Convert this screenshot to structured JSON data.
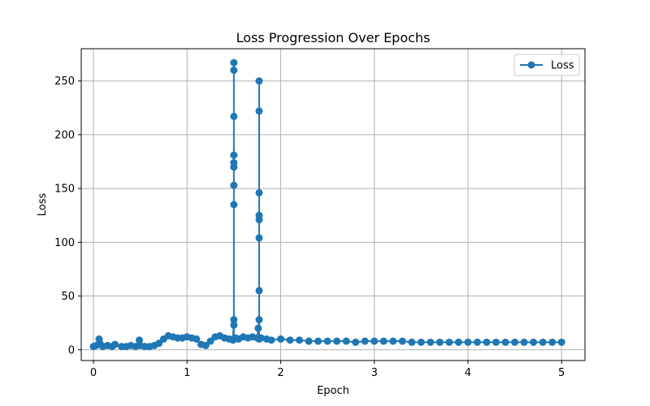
{
  "colors": {
    "series": "#1f77b4",
    "grid": "#b0b0b0",
    "frame": "#000000"
  },
  "chart_data": {
    "type": "line",
    "title": "Loss Progression Over Epochs",
    "xlabel": "Epoch",
    "ylabel": "Loss",
    "xlim": [
      -0.13,
      5.25
    ],
    "ylim": [
      -10,
      280
    ],
    "xticks": [
      0,
      1,
      2,
      3,
      4,
      5
    ],
    "yticks": [
      0,
      50,
      100,
      150,
      200,
      250
    ],
    "grid": true,
    "legend_position": "top-right",
    "series": [
      {
        "name": "Loss",
        "marker": "circle",
        "x": [
          0.0,
          0.03,
          0.06,
          0.07,
          0.1,
          0.15,
          0.2,
          0.23,
          0.3,
          0.35,
          0.4,
          0.45,
          0.49,
          0.5,
          0.55,
          0.6,
          0.65,
          0.7,
          0.75,
          0.8,
          0.85,
          0.9,
          0.95,
          1.0,
          1.05,
          1.1,
          1.15,
          1.2,
          1.25,
          1.3,
          1.35,
          1.4,
          1.45,
          1.49,
          1.5,
          1.5,
          1.5,
          1.5,
          1.5,
          1.5,
          1.5,
          1.5,
          1.5,
          1.5,
          1.5,
          1.52,
          1.55,
          1.6,
          1.65,
          1.7,
          1.75,
          1.76,
          1.77,
          1.77,
          1.77,
          1.77,
          1.77,
          1.77,
          1.77,
          1.77,
          1.77,
          1.79,
          1.85,
          1.9,
          2.0,
          2.1,
          2.2,
          2.3,
          2.4,
          2.5,
          2.6,
          2.7,
          2.8,
          2.9,
          3.0,
          3.1,
          3.2,
          3.3,
          3.4,
          3.5,
          3.6,
          3.7,
          3.8,
          3.9,
          4.0,
          4.1,
          4.2,
          4.3,
          4.4,
          4.5,
          4.6,
          4.7,
          4.8,
          4.9,
          5.0
        ],
        "y": [
          3,
          4,
          10,
          6,
          3,
          4,
          3,
          5,
          3,
          3,
          4,
          3,
          9,
          4,
          3,
          3,
          4,
          6,
          10,
          13,
          12,
          11,
          11,
          12,
          11,
          10,
          5,
          4,
          8,
          12,
          13,
          11,
          10,
          9,
          28,
          135,
          153,
          170,
          174,
          181,
          217,
          260,
          267,
          23,
          10,
          11,
          10,
          12,
          11,
          12,
          11,
          20,
          28,
          55,
          104,
          121,
          125,
          146,
          222,
          250,
          10,
          11,
          10,
          9,
          10,
          9,
          9,
          8,
          8,
          8,
          8,
          8,
          7,
          8,
          8,
          8,
          8,
          8,
          7,
          7,
          7,
          7,
          7,
          7,
          7,
          7,
          7,
          7,
          7,
          7,
          7,
          7,
          7,
          7,
          7
        ]
      }
    ]
  }
}
